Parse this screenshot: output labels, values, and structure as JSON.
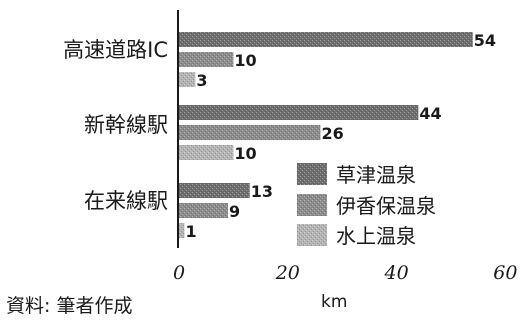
{
  "chart_data": {
    "type": "bar",
    "orientation": "horizontal",
    "categories": [
      "高速道路IC",
      "新幹線駅",
      "在来線駅"
    ],
    "series": [
      {
        "name": "草津温泉",
        "values": [
          54,
          44,
          13
        ],
        "color": "#6e6e6e"
      },
      {
        "name": "伊香保温泉",
        "values": [
          10,
          26,
          9
        ],
        "color": "#8c8c8c"
      },
      {
        "name": "水上温泉",
        "values": [
          3,
          10,
          1
        ],
        "color": "#b4b4b4"
      }
    ],
    "xlim": [
      0,
      60
    ],
    "xticks": [
      "0",
      "20",
      "40",
      "60"
    ],
    "xlabel": "km",
    "legend_position": "bottom-right",
    "grid": false
  },
  "footer": {
    "source": "資料: 筆者作成"
  }
}
